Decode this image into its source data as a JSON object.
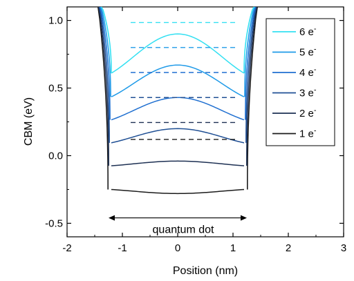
{
  "chart_data": {
    "type": "line",
    "xlabel": "Position (nm)",
    "ylabel": "CBM (eV)",
    "xlim": [
      -2,
      3
    ],
    "ylim": [
      -0.6,
      1.1
    ],
    "x_ticks": [
      -2,
      -1,
      0,
      1,
      2,
      3
    ],
    "y_ticks": [
      -0.5,
      0.0,
      0.5,
      1.0
    ],
    "x_tick_labels": [
      "-2",
      "-1",
      "0",
      "1",
      "2",
      "3"
    ],
    "y_tick_labels": [
      "-0.5",
      "0.0",
      "0.5",
      "1.0"
    ],
    "grid": false,
    "legend_position": "top-right",
    "dot_edges": [
      -1.2,
      1.2
    ],
    "series": [
      {
        "name": "1 e",
        "superscript": "-",
        "color": "#1a1a1a",
        "center": -0.28,
        "edge": -0.25,
        "level": 0.12
      },
      {
        "name": "2 e",
        "superscript": "-",
        "color": "#1c2f52",
        "center": -0.04,
        "edge": -0.075,
        "level": 0.245
      },
      {
        "name": "3 e",
        "superscript": "-",
        "color": "#1f4f94",
        "center": 0.2,
        "edge": 0.095,
        "level": 0.43
      },
      {
        "name": "4 e",
        "superscript": "-",
        "color": "#1f6fd0",
        "center": 0.43,
        "edge": 0.265,
        "level": 0.615
      },
      {
        "name": "5 e",
        "superscript": "-",
        "color": "#1e9ae8",
        "center": 0.67,
        "edge": 0.435,
        "level": 0.8
      },
      {
        "name": "6 e",
        "superscript": "-",
        "color": "#33e0f2",
        "center": 0.9,
        "edge": 0.61,
        "level": 0.985
      }
    ],
    "annotations": [
      {
        "text": "quantum dot",
        "arrow": "double",
        "from": -1.25,
        "to": 1.25,
        "y": -0.46
      }
    ]
  }
}
